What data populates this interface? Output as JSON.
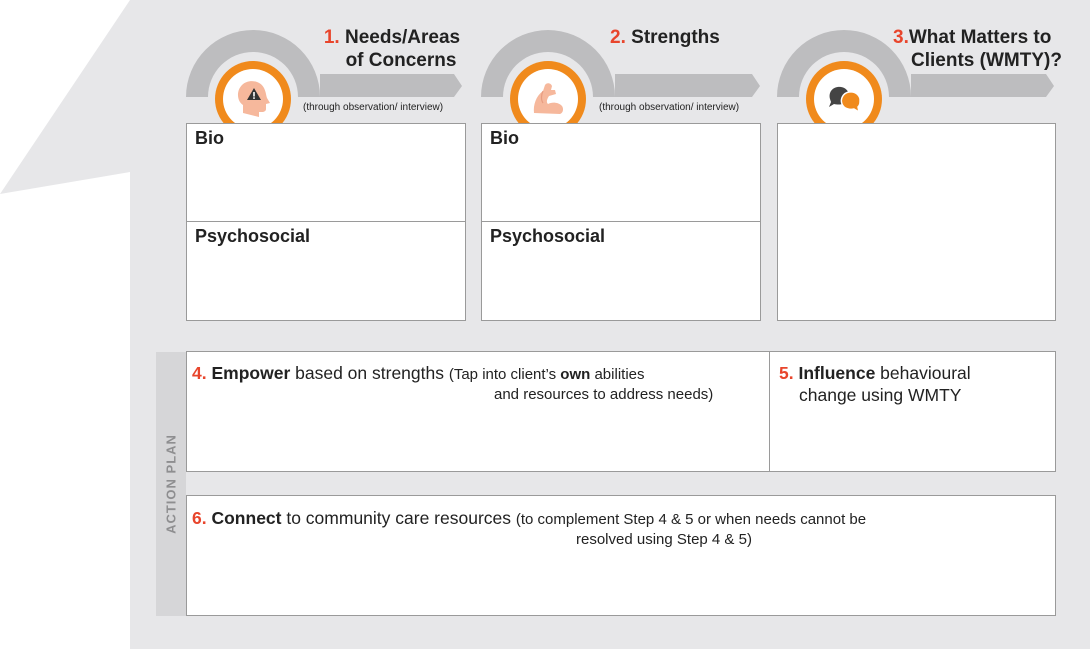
{
  "colors": {
    "accent": "#e8452c",
    "ring": "#f08a1c",
    "background_panel": "#e7e7e9",
    "arc": "#bdbdbf"
  },
  "sections": [
    {
      "number": "1.",
      "title_line1": "Needs/Areas",
      "title_line2": "of Concerns",
      "note": "(through observation/ interview)",
      "icon": "head-warning-icon",
      "boxes": [
        "Bio",
        "Psychosocial"
      ]
    },
    {
      "number": "2.",
      "title_line1": "Strengths",
      "title_line2": "",
      "note": "(through observation/ interview)",
      "icon": "flexed-arm-icon",
      "boxes": [
        "Bio",
        "Psychosocial"
      ]
    },
    {
      "number": "3.",
      "title_line1": "What Matters to",
      "title_line2": "Clients (WMTY)?",
      "note": "",
      "icon": "chat-bubbles-icon",
      "boxes": []
    }
  ],
  "action_plan": {
    "label": "ACTION PLAN",
    "step4": {
      "number": "4.",
      "bold": "Empower",
      "rest": " based on strengths ",
      "paren_a": "(Tap into client’s ",
      "paren_bold": "own",
      "paren_b": " abilities",
      "paren_line2": "and resources to address needs)"
    },
    "step5": {
      "number": "5.",
      "bold": "Influence",
      "rest": " behavioural",
      "line2": "change using WMTY"
    },
    "step6": {
      "number": "6.",
      "bold": "Connect",
      "rest": " to community care resources ",
      "paren_line1": "(to complement Step 4 & 5 or when needs cannot be",
      "paren_line2": "resolved using Step 4 & 5)"
    }
  }
}
